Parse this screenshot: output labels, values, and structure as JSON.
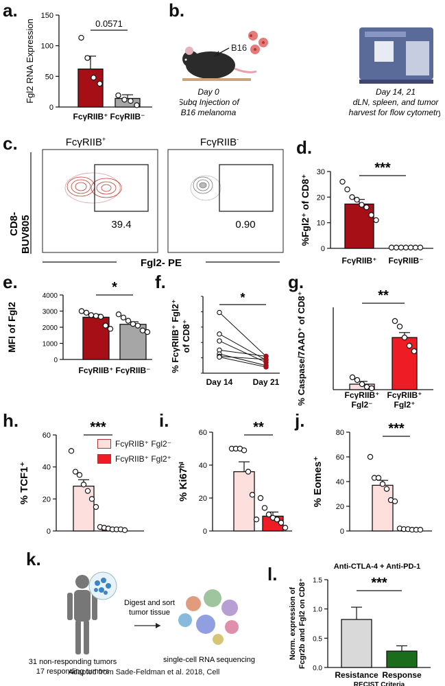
{
  "panel_labels": {
    "a": "a.",
    "b": "b.",
    "c": "c.",
    "d": "d.",
    "e": "e.",
    "f": "f.",
    "g": "g.",
    "h": "h.",
    "i": "i.",
    "j": "j.",
    "k": "k.",
    "l": "l."
  },
  "colors": {
    "dark_red": "#a50f15",
    "gray": "#a6a6a6",
    "light_pink": "#fde0dd",
    "bright_red": "#ee1c25",
    "dark_green": "#1b6d1b",
    "light_gray": "#d9d9d9"
  },
  "panel_b": {
    "b16_label": "B16",
    "day0_line1": "Day 0",
    "day0_line2": "Subq Injection of",
    "day0_line3": "B16 melanoma",
    "day14_line1": "Day 14, 21",
    "day14_line2": "dLN, spleen, and tumor",
    "day14_line3": "harvest for flow cytometry"
  },
  "panel_c": {
    "left_title": "FcγRIIB",
    "left_sup": "+",
    "right_title": "FcγRIIB",
    "right_sup": "-",
    "left_gate_value": "39.4",
    "right_gate_value": "0.90",
    "y_label_line1": "CD8-",
    "y_label_line2": "BUV805",
    "x_label": "Fgl2- PE"
  },
  "panel_k": {
    "non_responding": "31 non-responding tumors",
    "responding": "17 responding tumors",
    "process_line1": "Digest and sort",
    "process_line2": "tumor tissue",
    "result": "single-cell RNA sequencing",
    "citation": "Adapted from Sade-Feldman et al. 2018, Cell"
  },
  "legend_h": {
    "item1": "FcγRIIB⁺ Fgl2⁻",
    "item2": "FcγRIIB⁺ Fgl2⁺"
  },
  "chart_data": [
    {
      "id": "a",
      "type": "bar",
      "ylabel": "Fgl2 RNA Expression",
      "ylabel_italic_part": "Fgl2",
      "categories": [
        "FcγRIIB⁺",
        "FcγRIIB⁻"
      ],
      "values": [
        62,
        14
      ],
      "errors": [
        21,
        6
      ],
      "points": [
        [
          113,
          80,
          48,
          38
        ],
        [
          19,
          12,
          10,
          3
        ]
      ],
      "ylim": [
        0,
        150
      ],
      "yticks": [
        "0",
        "50",
        "100",
        "150"
      ],
      "pvalue": "0.0571"
    },
    {
      "id": "d",
      "type": "bar",
      "ylabel": "%Fgl2⁺ of CD8⁺",
      "categories": [
        "FcγRIIB⁺",
        "FcγRIIB⁻"
      ],
      "values": [
        17.3,
        0.3
      ],
      "errors": [
        1.8,
        0.1
      ],
      "points": [
        [
          26,
          23,
          20,
          19,
          17,
          16,
          13,
          11
        ],
        [
          0.3,
          0.3,
          0.3,
          0.3,
          0.3,
          0.3,
          0.3
        ]
      ],
      "ylim": [
        0,
        30
      ],
      "yticks": [
        "0",
        "10",
        "20",
        "30"
      ],
      "significance": "***"
    },
    {
      "id": "e",
      "type": "bar",
      "ylabel": "MFI of Fgl2",
      "categories": [
        "FcγRIIB⁺",
        "FcγRIIB⁻"
      ],
      "values": [
        2620,
        2180
      ],
      "errors": [
        180,
        160
      ],
      "points": [
        [
          3000,
          2900,
          2750,
          2700,
          2650,
          2100,
          1900
        ],
        [
          2800,
          2600,
          2400,
          2200,
          2100,
          1800,
          1700
        ]
      ],
      "ylim": [
        0,
        4000
      ],
      "yticks": [
        "0",
        "1000",
        "2000",
        "3000",
        "4000"
      ],
      "significance": "*"
    },
    {
      "id": "f",
      "type": "line",
      "ylabel_line1": "% FcγRIIB⁺ Fgl2⁺",
      "ylabel_line2": "of CD8⁺",
      "categories": [
        "Day 14",
        "Day 21"
      ],
      "pairs": [
        [
          79,
          22
        ],
        [
          51,
          17
        ],
        [
          42,
          14
        ],
        [
          30,
          22
        ],
        [
          25,
          10
        ],
        [
          22,
          18
        ],
        [
          21,
          8
        ]
      ],
      "ylim": [
        0,
        100
      ],
      "significance": "*"
    },
    {
      "id": "g",
      "type": "bar",
      "ylabel": "% Caspase/7AAD⁺ of CD8⁺",
      "categories": [
        "FcγRIIB⁺ Fgl2⁻",
        "FcγRIIB⁺ Fgl2⁺"
      ],
      "values": [
        2,
        19
      ],
      "errors": [
        1,
        1.8
      ],
      "points": [
        [
          4.5,
          3.5,
          2,
          1,
          0.5
        ],
        [
          25,
          23,
          19,
          16,
          14
        ]
      ],
      "ylim": [
        0,
        30
      ],
      "significance": "**"
    },
    {
      "id": "h",
      "type": "bar",
      "ylabel": "% TCF1⁺",
      "values": [
        28,
        1.5
      ],
      "errors": [
        4,
        0.5
      ],
      "points": [
        [
          50,
          37,
          35,
          29,
          25,
          20,
          15
        ],
        [
          2.5,
          2,
          1.5,
          1,
          1,
          1,
          0.5
        ]
      ],
      "ylim": [
        0,
        60
      ],
      "yticks": [
        "0",
        "20",
        "40",
        "60"
      ],
      "significance": "***"
    },
    {
      "id": "i",
      "type": "bar",
      "ylabel": "% Ki67ʰⁱ",
      "values": [
        36,
        9
      ],
      "errors": [
        6,
        2.5
      ],
      "points": [
        [
          50,
          50,
          50,
          49,
          36,
          22,
          7
        ],
        [
          20,
          14,
          10,
          8,
          7,
          5,
          2
        ]
      ],
      "ylim": [
        0,
        60
      ],
      "yticks": [
        "0",
        "20",
        "40",
        "60"
      ],
      "significance": "**"
    },
    {
      "id": "j",
      "type": "bar",
      "ylabel": "% Eomes⁺",
      "values": [
        37,
        1.5
      ],
      "errors": [
        4,
        0.3
      ],
      "points": [
        [
          60,
          43,
          43,
          38,
          34,
          25,
          24
        ],
        [
          2,
          1.5,
          1.5,
          1,
          1,
          1
        ]
      ],
      "ylim": [
        0,
        80
      ],
      "yticks": [
        "0",
        "20",
        "40",
        "60",
        "80"
      ],
      "significance": "***"
    },
    {
      "id": "l",
      "type": "bar",
      "title": "Anti-CTLA-4 + Anti-PD-1",
      "ylabel_line1": "Norm. expression of",
      "ylabel_line2": "Fcgr2b and Fgl2 on CD8⁺",
      "categories": [
        "Resistance",
        "Response"
      ],
      "values": [
        0.82,
        0.28
      ],
      "errors": [
        0.21,
        0.09
      ],
      "ylim": [
        0,
        1.5
      ],
      "yticks": [
        "0.0",
        "0.5",
        "1.0",
        "1.5"
      ],
      "xlabel": "RECIST Criteria",
      "significance": "***"
    }
  ]
}
